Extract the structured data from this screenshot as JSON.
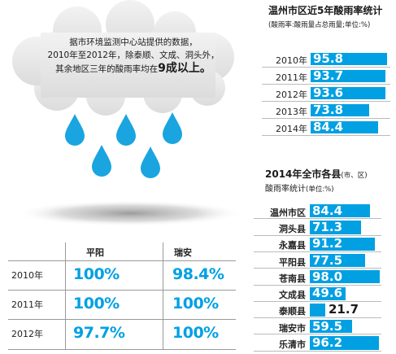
{
  "cloud_text": {
    "line1": "据市环境监测中心站提供的数据，",
    "line2": "2010年至2012年，除泰顺、文成、洞头外，",
    "line3_prefix": "其余地区三年的酸雨率均在",
    "line3_highlight": "9成以上。"
  },
  "table": {
    "headers": [
      "平阳",
      "瑞安"
    ],
    "rows": [
      {
        "year": "2010年",
        "values": [
          "100%",
          "98.4%"
        ]
      },
      {
        "year": "2011年",
        "values": [
          "100%",
          "100%"
        ]
      },
      {
        "year": "2012年",
        "values": [
          "97.7%",
          "100%"
        ]
      }
    ]
  },
  "colors": {
    "accent": "#00a0e3",
    "cloud": "#e8e8e8",
    "drop": "#1aa5e0"
  },
  "chart_data": [
    {
      "type": "bar",
      "orientation": "horizontal",
      "title": "温州市区近5年酸雨率统计",
      "subtitle": "(酸雨率:酸雨量占总雨量;单位:%)",
      "categories": [
        "2010年",
        "2011年",
        "2012年",
        "2013年",
        "2014年"
      ],
      "values": [
        95.8,
        93.7,
        93.6,
        73.8,
        84.4
      ],
      "value_labels": [
        "95.8",
        "93.7",
        "93.6",
        "73.8",
        "84.4"
      ],
      "xlim": [
        0,
        100
      ]
    },
    {
      "type": "bar",
      "orientation": "horizontal",
      "title_main": "2014年全市各县",
      "title_small": "(市、区)",
      "subtitle_main": "酸雨率统计",
      "subtitle_small": "(单位:%)",
      "categories": [
        "温州市区",
        "洞头县",
        "永嘉县",
        "平阳县",
        "苍南县",
        "文成县",
        "泰顺县",
        "瑞安市",
        "乐清市"
      ],
      "values": [
        84.4,
        71.3,
        91.2,
        77.5,
        98.0,
        49.6,
        21.7,
        59.5,
        96.2
      ],
      "value_labels": [
        "84.4",
        "71.3",
        "91.2",
        "77.5",
        "98.0",
        "49.6",
        "21.7",
        "59.5",
        "96.2"
      ],
      "xlim": [
        0,
        100
      ]
    }
  ]
}
